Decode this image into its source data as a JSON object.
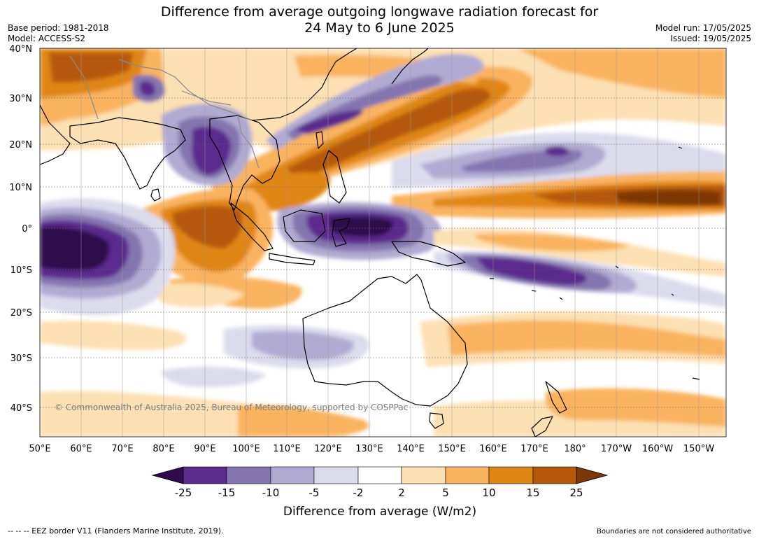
{
  "header": {
    "title_line1": "Difference from average outgoing longwave radiation forecast for",
    "title_line2": "24 May to 6 June 2025",
    "base_period": "Base period: 1981-2018",
    "model": "Model: ACCESS-S2",
    "model_run": "Model run: 17/05/2025",
    "issued": "Issued: 19/05/2025"
  },
  "map": {
    "region": "Indo-Pacific, Maritime Continent and Australia",
    "lat_labels": [
      "40°N",
      "30°N",
      "20°N",
      "10°N",
      "0°",
      "10°S",
      "20°S",
      "30°S",
      "40°S"
    ],
    "lon_labels": [
      "50°E",
      "60°E",
      "70°E",
      "80°E",
      "90°E",
      "100°E",
      "110°E",
      "120°E",
      "130°E",
      "140°E",
      "150°E",
      "160°E",
      "170°E",
      "180°",
      "170°W",
      "160°W",
      "150°W"
    ],
    "copyright": "© Commonwealth of Australia 2025, Bureau of Meteorology, supported by COSPPac",
    "gridlines": true
  },
  "legend": {
    "title": "Difference from average (W/m2)",
    "tick_labels": [
      "-25",
      "-15",
      "-10",
      "-5",
      "-2",
      "2",
      "5",
      "10",
      "15",
      "25"
    ],
    "colors": [
      "#2f0a4d",
      "#5a2a8c",
      "#8474b0",
      "#b1aad2",
      "#dcdbec",
      "#ffffff",
      "#fde0b3",
      "#f9b35e",
      "#e08617",
      "#b5580a",
      "#7b3806"
    ]
  },
  "footer": {
    "eez_note": "--  --  -- EEZ border V11 (Flanders Marine Institute, 2019).",
    "boundaries_note": "Boundaries are not considered authoritative"
  }
}
